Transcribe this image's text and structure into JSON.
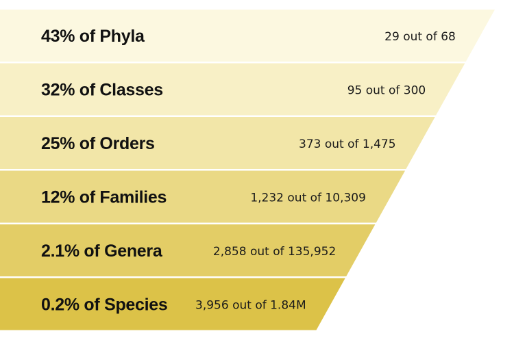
{
  "chart_data": {
    "type": "funnel",
    "title": "",
    "stages": [
      {
        "label": "43% of Phyla",
        "percent": 43,
        "detail": "29 out of 68",
        "count": 29,
        "total": 68,
        "color": "#FCF8E0"
      },
      {
        "label": "32% of Classes",
        "percent": 32,
        "detail": "95 out of 300",
        "count": 95,
        "total": 300,
        "color": "#F8F0C6"
      },
      {
        "label": "25% of Orders",
        "percent": 25,
        "detail": "373 out of 1,475",
        "count": 373,
        "total": 1475,
        "color": "#F2E6A8"
      },
      {
        "label": "12% of Families",
        "percent": 12,
        "detail": "1,232 out of 10,309",
        "count": 1232,
        "total": 10309,
        "color": "#EAD985"
      },
      {
        "label": "2.1% of Genera",
        "percent": 2.1,
        "detail": "2,858 out of 135,952",
        "count": 2858,
        "total": 135952,
        "color": "#E3CD66"
      },
      {
        "label": "0.2% of Species",
        "percent": 0.2,
        "detail": "3,956 out of 1.84M",
        "count": 3956,
        "total": 1840000,
        "color": "#DCC248"
      }
    ]
  }
}
